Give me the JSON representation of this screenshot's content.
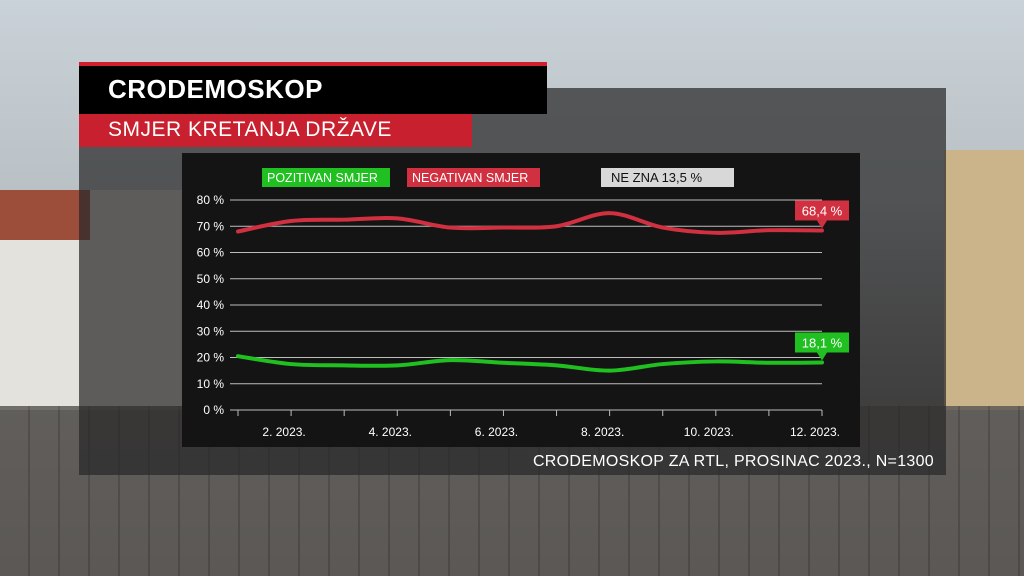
{
  "header": {
    "title": "CRODEMOSKOP",
    "subtitle": "SMJER KRETANJA DRŽAVE"
  },
  "source": "CRODEMOSKOP ZA RTL, PROSINAC 2023., N=1300",
  "colors": {
    "positive": "#20c020",
    "negative": "#d0303f",
    "dont_know": "#d8d8d8",
    "brand_red": "#c8202e"
  },
  "chart_data": {
    "type": "line",
    "title": "",
    "ylim": [
      0,
      80
    ],
    "y_ticks": [
      "0 %",
      "10 %",
      "20 %",
      "30 %",
      "40 %",
      "50 %",
      "60 %",
      "70 %",
      "80 %"
    ],
    "x": [
      "1. 2023.",
      "2. 2023.",
      "3. 2023.",
      "4. 2023.",
      "5. 2023.",
      "6. 2023.",
      "7. 2023.",
      "8. 2023.",
      "9. 2023.",
      "10. 2023.",
      "11. 2023.",
      "12. 2023."
    ],
    "x_tick_labels": [
      "",
      "2. 2023.",
      "",
      "4. 2023.",
      "",
      "6. 2023.",
      "",
      "8. 2023.",
      "",
      "10. 2023.",
      "",
      "12. 2023."
    ],
    "grid": true,
    "legend_position": "top",
    "series": [
      {
        "name": "POZITIVAN SMJER",
        "color": "#20c020",
        "values": [
          20.5,
          17.5,
          17,
          17,
          19,
          18,
          17,
          15,
          17.5,
          18.5,
          18,
          18.1
        ],
        "end_label": "18,1 %"
      },
      {
        "name": "NEGATIVAN SMJER",
        "color": "#d0303f",
        "values": [
          68,
          72,
          72.5,
          73,
          69.5,
          69.5,
          70,
          75,
          69.5,
          67.5,
          68.5,
          68.4
        ],
        "end_label": "68,4 %"
      }
    ],
    "extra_legend": {
      "label": "NE ZNA",
      "value": "13,5 %"
    }
  }
}
